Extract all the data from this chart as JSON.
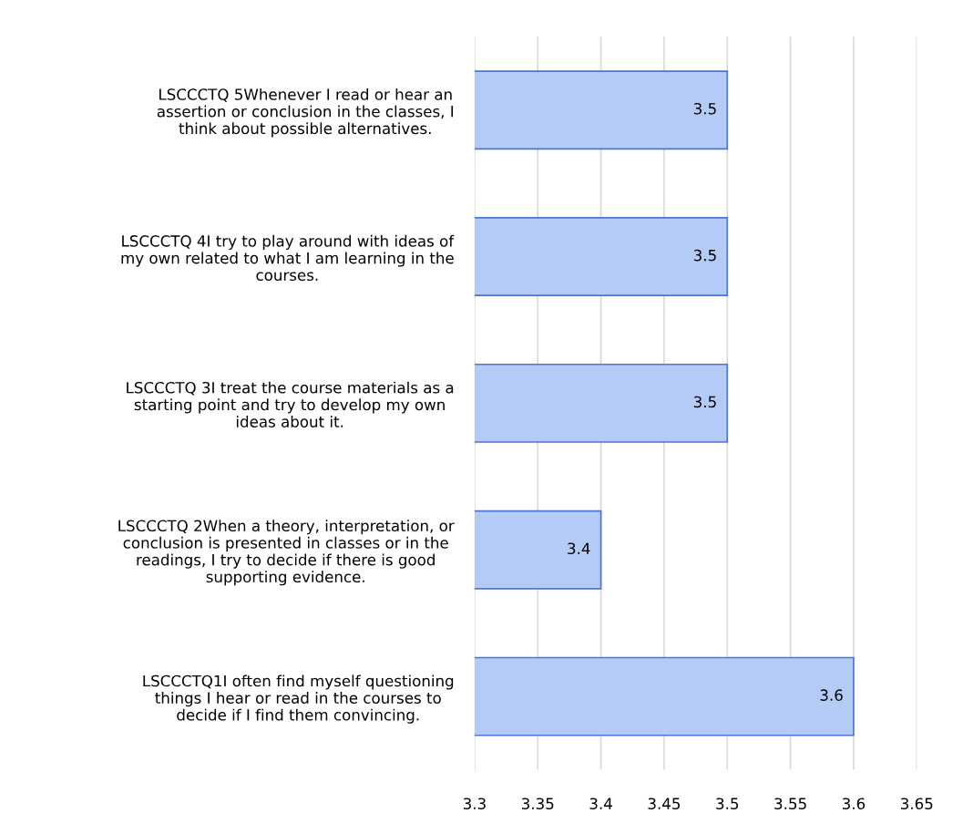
{
  "chart_data": {
    "type": "bar",
    "orientation": "horizontal",
    "categories": [
      "LSCCCTQ 5Whenever I read or hear an assertion or conclusion in the classes, I think about possible alternatives.",
      "LSCCCTQ 4I try to play around with ideas of my own related to what I am learning in the courses.",
      "LSCCCTQ 3I treat the course materials as a starting point and try to develop my own ideas about it.",
      "LSCCCTQ 2When a theory, interpretation, or conclusion is presented in classes or in the readings, I try to decide if there is good supporting evidence.",
      "LSCCCTQ1I often find myself questioning things I hear or read in the courses to decide if I find them convincing."
    ],
    "values": [
      3.5,
      3.5,
      3.5,
      3.4,
      3.6
    ],
    "color": "#b4cbf6",
    "xlim": [
      3.3,
      3.65
    ],
    "xticks": [
      3.3,
      3.35,
      3.4,
      3.45,
      3.5,
      3.55,
      3.6,
      3.65
    ],
    "grid": "x",
    "data_labels": true
  }
}
